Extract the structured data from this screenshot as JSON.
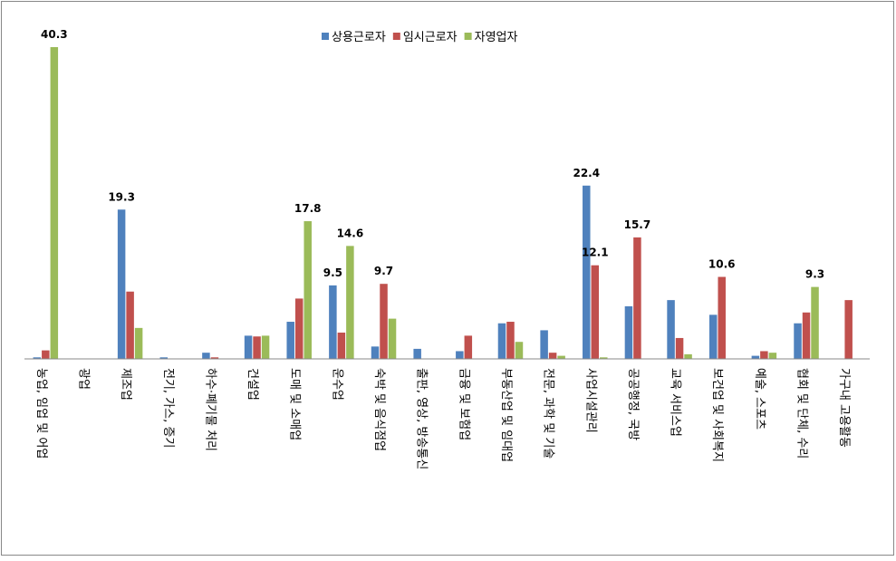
{
  "chart_data": {
    "type": "bar",
    "categories": [
      "농업, 임업 및 어업",
      "광업",
      "제조업",
      "전기, 가스, 증기",
      "하수·폐기물 처리",
      "건설업",
      "도매 및 소매업",
      "운수업",
      "숙박 및 음식점업",
      "출판, 영상, 방송통신",
      "금융 및 보험업",
      "부동산업 및 임대업",
      "전문, 과학 및 기술",
      "사업시설관리",
      "공공행정, 국방",
      "교육 서비스업",
      "보건업 및 사회복지",
      "예술, 스포츠",
      "협회 및 단체, 수리",
      "가구내 고용활동"
    ],
    "series": [
      {
        "name": "상용근로자",
        "color": "#4f81bd",
        "values": [
          0.2,
          0,
          19.3,
          0.2,
          0.8,
          3.0,
          4.8,
          9.5,
          1.6,
          1.3,
          1.0,
          4.6,
          3.7,
          22.4,
          6.8,
          7.6,
          5.7,
          0.4,
          4.6,
          0
        ],
        "value_labels": [
          null,
          null,
          "19.3",
          null,
          null,
          null,
          null,
          "9.5",
          null,
          null,
          null,
          null,
          null,
          "22.4",
          null,
          null,
          null,
          null,
          null,
          null
        ]
      },
      {
        "name": "임시근로자",
        "color": "#c0504d",
        "values": [
          1.1,
          0,
          8.7,
          0,
          0.2,
          2.9,
          7.8,
          3.4,
          9.7,
          0,
          3.0,
          4.8,
          0.8,
          12.1,
          15.7,
          2.7,
          10.6,
          1.0,
          6.0,
          7.6
        ],
        "value_labels": [
          null,
          null,
          null,
          null,
          null,
          null,
          null,
          null,
          "9.7",
          null,
          null,
          null,
          null,
          "12.1",
          "15.7",
          null,
          "10.6",
          null,
          null,
          null
        ]
      },
      {
        "name": "자영업자",
        "color": "#9bbb59",
        "values": [
          40.3,
          0,
          4.0,
          0,
          0,
          3.0,
          17.8,
          14.6,
          5.2,
          0,
          0,
          2.2,
          0.4,
          0.2,
          0,
          0.6,
          0,
          0.8,
          9.3,
          0
        ],
        "value_labels": [
          "40.3",
          null,
          null,
          null,
          null,
          null,
          "17.8",
          "14.6",
          null,
          null,
          null,
          null,
          null,
          null,
          null,
          null,
          null,
          null,
          "9.3",
          null
        ]
      }
    ],
    "legend": "top"
  }
}
